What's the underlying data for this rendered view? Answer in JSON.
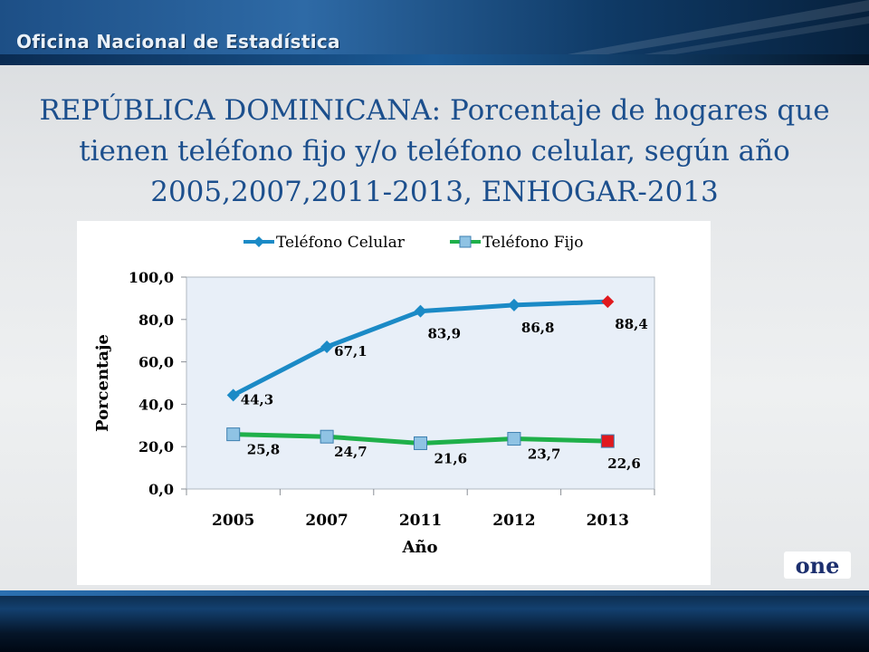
{
  "header": {
    "org_name": "Oficina Nacional de Estadística"
  },
  "title": "REPÚBLICA DOMINICANA: Porcentaje de hogares que tienen teléfono fijo y/o teléfono celular, según año 2005,2007,2011-2013, ENHOGAR-2013",
  "logo": {
    "text": "one"
  },
  "chart_data": {
    "type": "line",
    "title": "",
    "xlabel": "Año",
    "ylabel": "Porcentaje",
    "categories": [
      "2005",
      "2007",
      "2011",
      "2012",
      "2013"
    ],
    "ylim": [
      0,
      100
    ],
    "yticks": [
      "0,0",
      "20,0",
      "40,0",
      "60,0",
      "80,0",
      "100,0"
    ],
    "ytick_values": [
      0,
      20,
      40,
      60,
      80,
      100
    ],
    "legend_position": "top",
    "grid": false,
    "series": [
      {
        "name": "Teléfono Celular",
        "color": "#1b8ac6",
        "marker": "diamond",
        "last_marker_color": "#e0191e",
        "values": [
          44.3,
          67.1,
          83.9,
          86.8,
          88.4
        ],
        "labels": [
          "44,3",
          "67,1",
          "83,9",
          "86,8",
          "88,4"
        ]
      },
      {
        "name": "Teléfono Fijo",
        "color": "#1fb04a",
        "marker": "square",
        "marker_color": "#8fc3e4",
        "last_marker_color": "#e0191e",
        "values": [
          25.8,
          24.7,
          21.6,
          23.7,
          22.6
        ],
        "labels": [
          "25,8",
          "24,7",
          "21,6",
          "23,7",
          "22,6"
        ]
      }
    ]
  }
}
